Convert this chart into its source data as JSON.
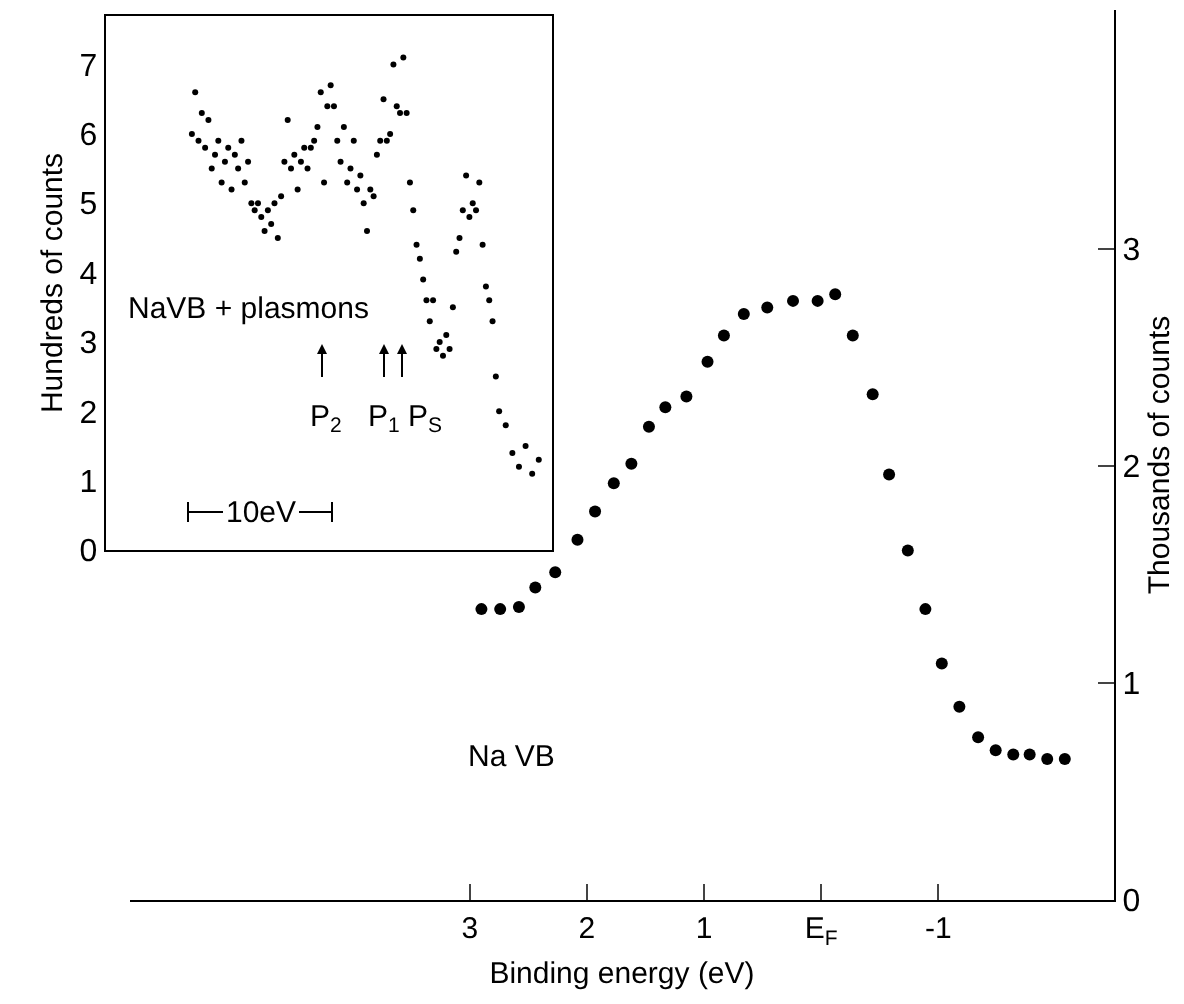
{
  "chart_data": [
    {
      "type": "scatter",
      "xlabel": "Binding energy (eV)",
      "y2label": "Thousands of counts",
      "annotations": [
        "Na VB"
      ],
      "x": [
        2.9,
        2.74,
        2.58,
        2.44,
        2.27,
        2.08,
        1.93,
        1.77,
        1.62,
        1.47,
        1.33,
        1.15,
        0.97,
        0.83,
        0.66,
        0.46,
        0.24,
        0.03,
        -0.12,
        -0.27,
        -0.44,
        -0.58,
        -0.74,
        -0.89,
        -1.03,
        -1.18,
        -1.34,
        -1.49,
        -1.64,
        -1.78,
        -1.93,
        -2.08
      ],
      "series": [
        {
          "color": "#000000",
          "axis": "y2",
          "values": [
            1.34,
            1.34,
            1.35,
            1.44,
            1.51,
            1.66,
            1.79,
            1.92,
            2.01,
            2.18,
            2.27,
            2.32,
            2.48,
            2.6,
            2.7,
            2.73,
            2.76,
            2.76,
            2.79,
            2.6,
            2.33,
            1.96,
            1.61,
            1.34,
            1.09,
            0.89,
            0.75,
            0.69,
            0.67,
            0.67,
            0.65,
            0.65
          ]
        }
      ],
      "xlim": [
        5.9,
        -2.5
      ],
      "xticks": [
        3,
        2,
        1,
        {
          "value": 0,
          "label": "E$_{F}$"
        },
        -1
      ],
      "y2lim": [
        0,
        4.1
      ],
      "y2ticks": [
        0,
        1,
        2,
        3
      ],
      "marker": "circle"
    },
    {
      "type": "scatter",
      "ylabel": "Hundreds of counts",
      "annotations": [
        "NaVB + plasmons",
        "P$_{2}$",
        "P$_{1}$",
        "P$_{S}$",
        "10eV"
      ],
      "categories": [
        null,
        null,
        null,
        null,
        null,
        null,
        null,
        null,
        null,
        null,
        null,
        null,
        null,
        null,
        null,
        null,
        null,
        null,
        null,
        null,
        null,
        null,
        null,
        null,
        null,
        null,
        null,
        null,
        null,
        null,
        null,
        null,
        null,
        null,
        null,
        null,
        null,
        null,
        null,
        null,
        null,
        null,
        null,
        null,
        null,
        null,
        null,
        null,
        null,
        null,
        null,
        null,
        null,
        null,
        null,
        null,
        null,
        null,
        null,
        null,
        null,
        null,
        null,
        null,
        null,
        null,
        null,
        null,
        null,
        null,
        null,
        null,
        null,
        null,
        null,
        null,
        null,
        null,
        null,
        null,
        null,
        null,
        null,
        null,
        null,
        null,
        null,
        null,
        null,
        null,
        null,
        null,
        null,
        null,
        null,
        null,
        null,
        null,
        null,
        null,
        null,
        null,
        null,
        null,
        null,
        null,
        null,
        null,
        null,
        null,
        null,
        null,
        null,
        null,
        null,
        null,
        null,
        null,
        null,
        null,
        null,
        null,
        null,
        null,
        null,
        null,
        null,
        null,
        null,
        null,
        null,
        null,
        null,
        null,
        null,
        null
      ],
      "series": [
        {
          "color": "#000000",
          "values": [
            null,
            null,
            null,
            null,
            null,
            null,
            null,
            null,
            null,
            null,
            null,
            null,
            null,
            null,
            null,
            null,
            null,
            null,
            null,
            null,
            null,
            null,
            null,
            null,
            null,
            null,
            6.0,
            6.6,
            5.9,
            6.3,
            5.8,
            6.2,
            5.5,
            5.7,
            5.9,
            5.3,
            5.6,
            5.8,
            5.2,
            5.7,
            5.5,
            5.9,
            5.3,
            5.6,
            5.0,
            4.9,
            5.0,
            4.8,
            4.6,
            4.9,
            4.7,
            5.0,
            4.5,
            5.1,
            5.6,
            6.2,
            5.5,
            5.7,
            5.2,
            5.6,
            5.8,
            5.5,
            5.8,
            5.9,
            6.1,
            6.6,
            5.3,
            6.4,
            6.7,
            6.4,
            5.9,
            5.6,
            6.1,
            5.3,
            5.5,
            5.9,
            5.2,
            5.4,
            5.0,
            4.6,
            5.2,
            5.1,
            5.7,
            5.9,
            6.5,
            5.9,
            6.0,
            7.0,
            6.4,
            6.3,
            7.1,
            6.3,
            5.3,
            4.9,
            4.4,
            4.2,
            3.9,
            3.6,
            3.3,
            3.6,
            2.9,
            3.0,
            2.8,
            3.1,
            2.9,
            3.5,
            4.3,
            4.5,
            4.9,
            5.4,
            4.8,
            5.0,
            4.9,
            5.3,
            4.4,
            3.8,
            3.6,
            3.3,
            2.5,
            2.0,
            null,
            1.8,
            null,
            1.4,
            null,
            1.2,
            null,
            1.5,
            null,
            1.1,
            null,
            1.3,
            null,
            null,
            null,
            null
          ]
        }
      ],
      "ylim": [
        0,
        7.7
      ],
      "yticks": [
        0,
        1,
        2,
        3,
        4,
        5,
        6,
        7
      ],
      "tick_labels": "y",
      "marker": "circle"
    }
  ]
}
